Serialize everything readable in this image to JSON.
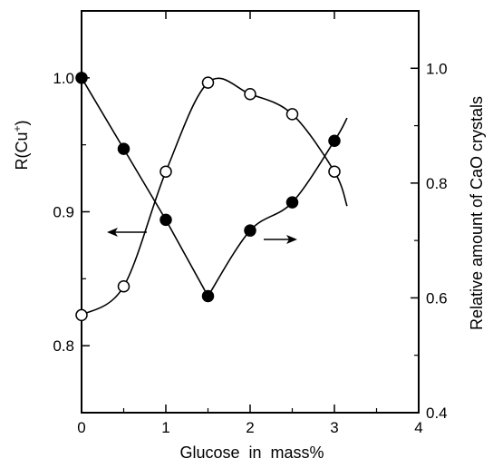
{
  "chart_data": {
    "type": "line",
    "xlabel": "Glucose  in  mass%",
    "ylabel_left": "R(Cu",
    "ylabel_left_sup": "+",
    "ylabel_left_close": ")",
    "ylabel_right": "Relative amount of CaO crystals",
    "xlim": [
      0,
      4
    ],
    "ylim_left": [
      0.75,
      1.05
    ],
    "ylim_right": [
      0.4,
      1.1
    ],
    "x_ticks": [
      "0",
      "1",
      "2",
      "3",
      "4"
    ],
    "y_left_ticks": [
      "0.8",
      "0.9",
      "1.0"
    ],
    "y_right_ticks": [
      "0.4",
      "0.6",
      "0.8",
      "1.0"
    ],
    "grid": false,
    "series": [
      {
        "axis": "left",
        "marker": "filled-circle",
        "x": [
          0,
          0.5,
          1.0,
          1.5,
          2.0,
          2.5,
          3.0
        ],
        "y": [
          1.0,
          0.947,
          0.894,
          0.837,
          0.886,
          0.907,
          0.953
        ],
        "curve_end": [
          3.15,
          0.97
        ]
      },
      {
        "axis": "right",
        "marker": "open-circle",
        "x": [
          0,
          0.5,
          1.0,
          1.5,
          2.0,
          2.5,
          3.0
        ],
        "y": [
          0.57,
          0.62,
          0.82,
          0.975,
          0.955,
          0.92,
          0.82
        ],
        "curve_end": [
          3.15,
          0.76
        ]
      }
    ],
    "annotations": [
      {
        "type": "arrow",
        "points_to": "left axis"
      },
      {
        "type": "arrow",
        "points_to": "right axis"
      }
    ]
  }
}
